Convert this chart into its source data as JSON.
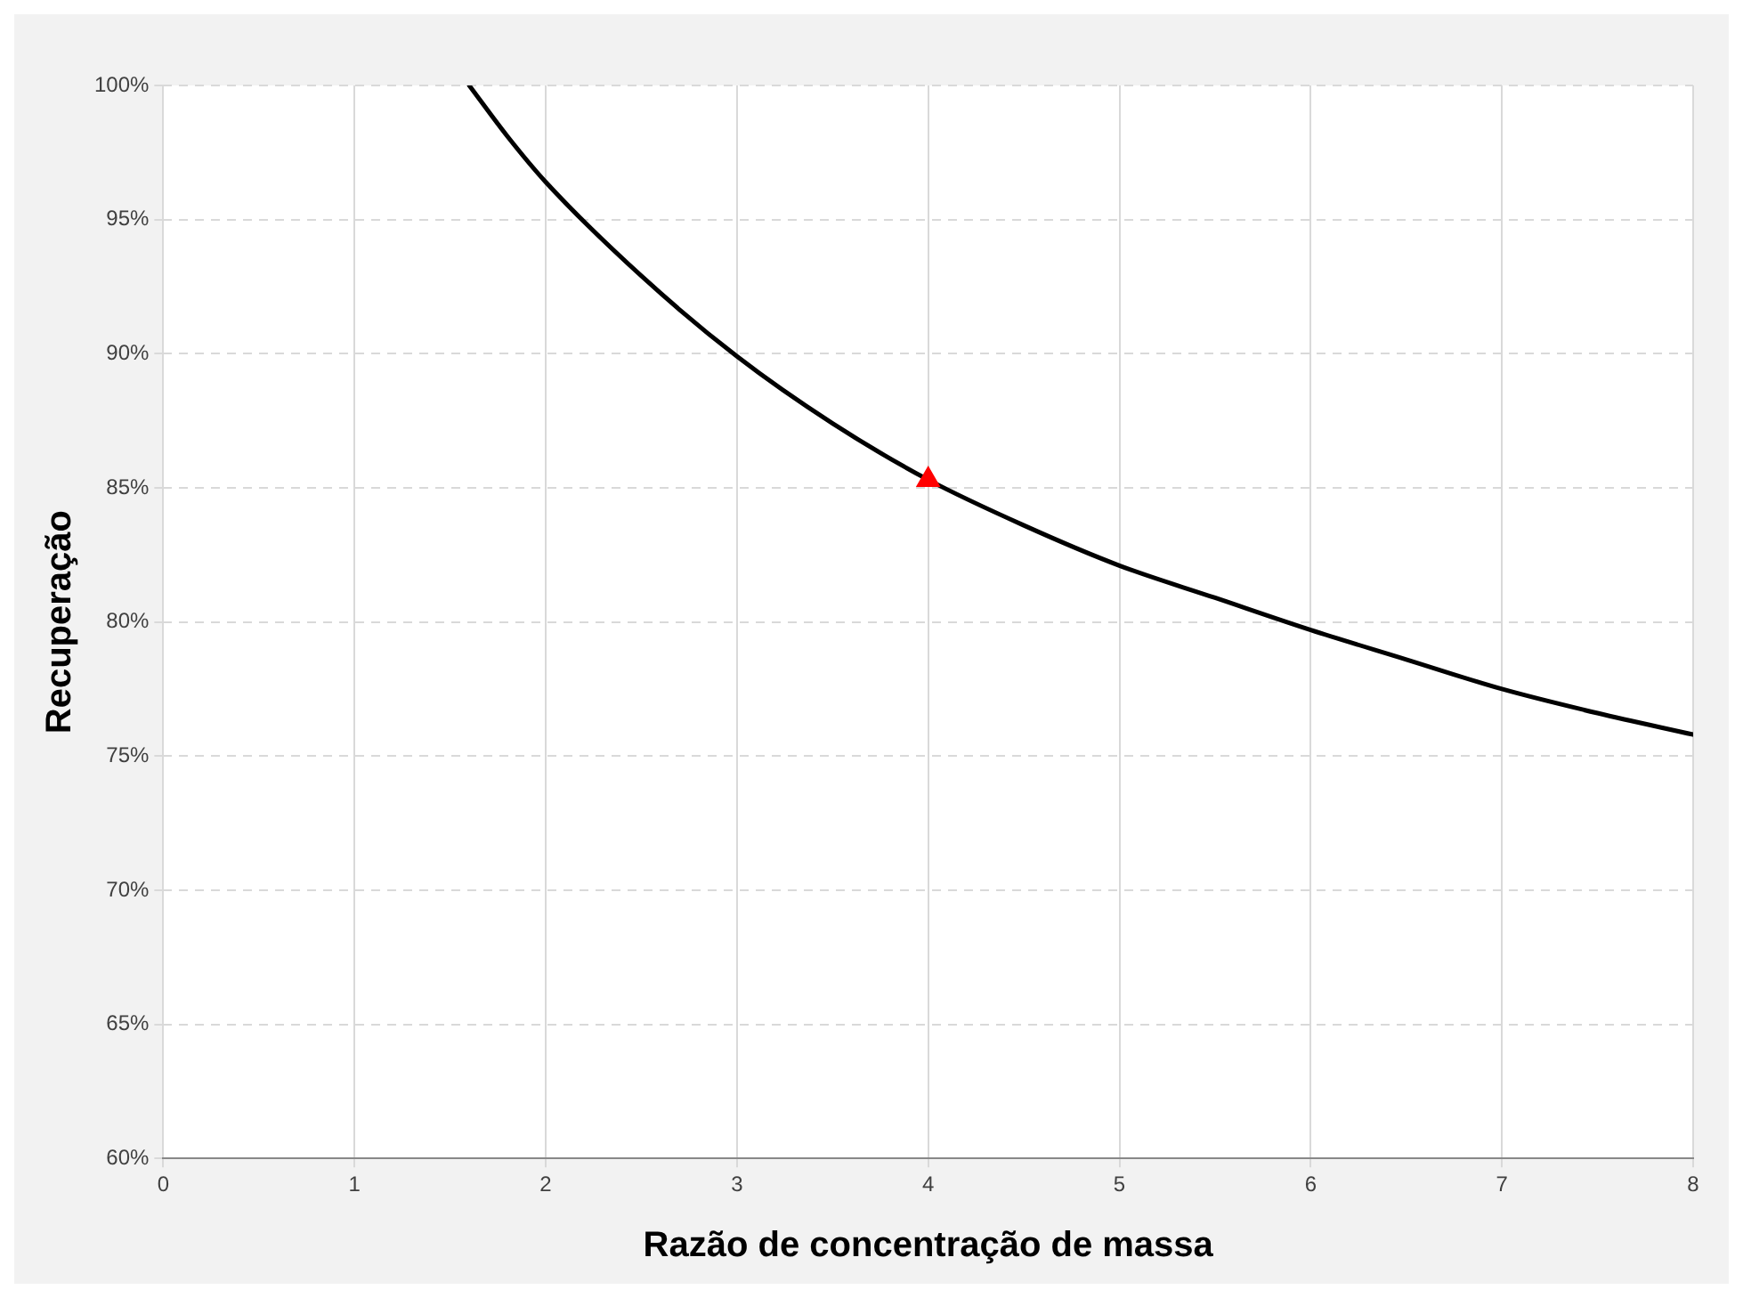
{
  "chart_data": {
    "type": "line",
    "xlabel": "Razão de concentração de massa",
    "ylabel": "Recuperação",
    "xlim": [
      0,
      8
    ],
    "xticks": [
      0,
      1,
      2,
      3,
      4,
      5,
      6,
      7,
      8
    ],
    "ylim": [
      60,
      100
    ],
    "yticks": [
      {
        "value": 60,
        "label": "60%"
      },
      {
        "value": 65,
        "label": "65%"
      },
      {
        "value": 70,
        "label": "70%"
      },
      {
        "value": 75,
        "label": "75%"
      },
      {
        "value": 80,
        "label": "80%"
      },
      {
        "value": 85,
        "label": "85%"
      },
      {
        "value": 90,
        "label": "90%"
      },
      {
        "value": 95,
        "label": "95%"
      },
      {
        "value": 100,
        "label": "100%"
      }
    ],
    "grid": true,
    "legend": false,
    "series": [
      {
        "color": "#000000",
        "marker": "none",
        "line_style": "solid",
        "x": [
          1.6,
          1.8,
          2,
          2.5,
          3,
          3.5,
          4,
          4.5,
          5,
          5.5,
          6,
          6.5,
          7,
          7.5,
          8
        ],
        "values": [
          100,
          98.1,
          96.4,
          92.9,
          89.9,
          87.4,
          85.3,
          83.6,
          82.1,
          80.9,
          79.7,
          78.6,
          77.5,
          76.6,
          75.8
        ]
      },
      {
        "type": "scatter",
        "color": "#ff0000",
        "marker": "triangle",
        "x": [
          4
        ],
        "values": [
          85.3
        ]
      }
    ]
  }
}
